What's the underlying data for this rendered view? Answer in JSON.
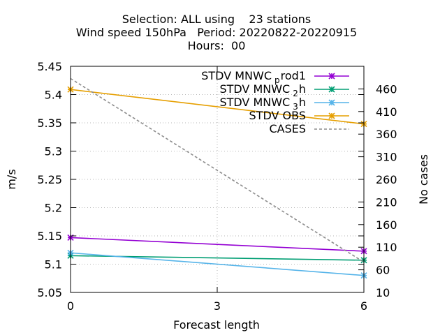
{
  "chart_data": {
    "type": "line",
    "title_lines": [
      "Selection: ALL using    23 stations",
      "Wind speed 150hPa   Period: 20220822-20220915",
      "Hours:  00"
    ],
    "xlabel": "Forecast length",
    "ylabel": "m/s",
    "y2label": "No cases",
    "x_ticks": [
      0,
      3,
      6
    ],
    "xlim": [
      0,
      6
    ],
    "y_ticks": [
      "5.05",
      "5.1",
      "5.15",
      "5.2",
      "5.25",
      "5.3",
      "5.35",
      "5.4",
      "5.45"
    ],
    "ylim": [
      5.05,
      5.45
    ],
    "y2_ticks": [
      10,
      60,
      110,
      160,
      210,
      260,
      310,
      360,
      410,
      460
    ],
    "y2lim": [
      10,
      510
    ],
    "grid": true,
    "legend_position": "top-right",
    "series": [
      {
        "name_parts": [
          "STDV MNWC",
          "p",
          "rod1"
        ],
        "color": "#9400d3",
        "axis": "y",
        "x": [
          0,
          6
        ],
        "values": [
          5.147,
          5.123
        ],
        "marker": "star"
      },
      {
        "name_parts": [
          "STDV MNWC",
          "2",
          "h"
        ],
        "color": "#009e73",
        "axis": "y",
        "x": [
          0,
          6
        ],
        "values": [
          5.115,
          5.107
        ],
        "marker": "star"
      },
      {
        "name_parts": [
          "STDV MNWC",
          "3",
          "h"
        ],
        "color": "#56b4e9",
        "axis": "y",
        "x": [
          0,
          6
        ],
        "values": [
          5.12,
          5.08
        ],
        "marker": "star"
      },
      {
        "name_parts": [
          "STDV OBS",
          "",
          ""
        ],
        "color": "#e69f00",
        "axis": "y",
        "x": [
          0,
          6
        ],
        "values": [
          5.409,
          5.348
        ],
        "marker": "star"
      },
      {
        "name_parts": [
          "CASES",
          "",
          ""
        ],
        "color": "#8c8c8c",
        "axis": "y2",
        "x": [
          0,
          6
        ],
        "values": [
          483,
          77
        ],
        "marker": "none",
        "dashed": true
      }
    ]
  }
}
